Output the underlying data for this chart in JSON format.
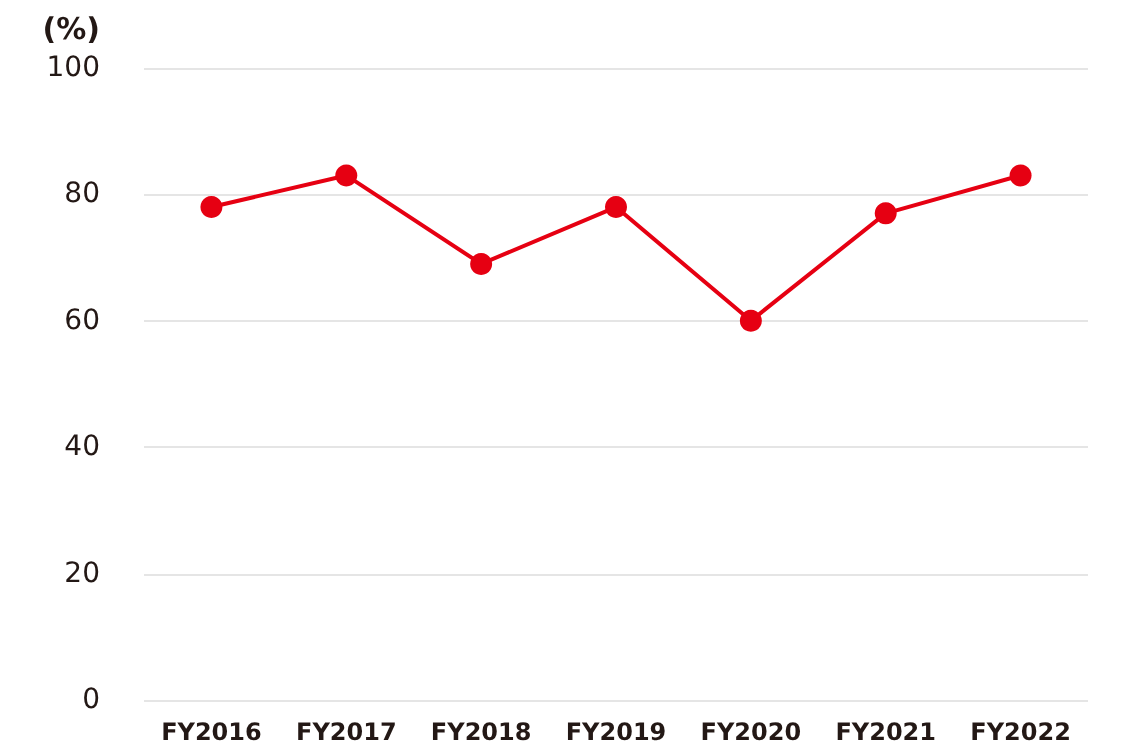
{
  "chart_data": {
    "type": "line",
    "ylabel": "(%)",
    "categories": [
      "FY2016",
      "FY2017",
      "FY2018",
      "FY2019",
      "FY2020",
      "FY2021",
      "FY2022"
    ],
    "series": [
      {
        "color": "#e60012",
        "values": [
          78,
          83,
          69,
          78,
          60,
          77,
          83
        ]
      }
    ],
    "ylim": [
      0,
      100
    ],
    "yticks": [
      0,
      20,
      40,
      60,
      80,
      100
    ],
    "grid": "y",
    "marker": "circle",
    "line_style": "solid"
  }
}
